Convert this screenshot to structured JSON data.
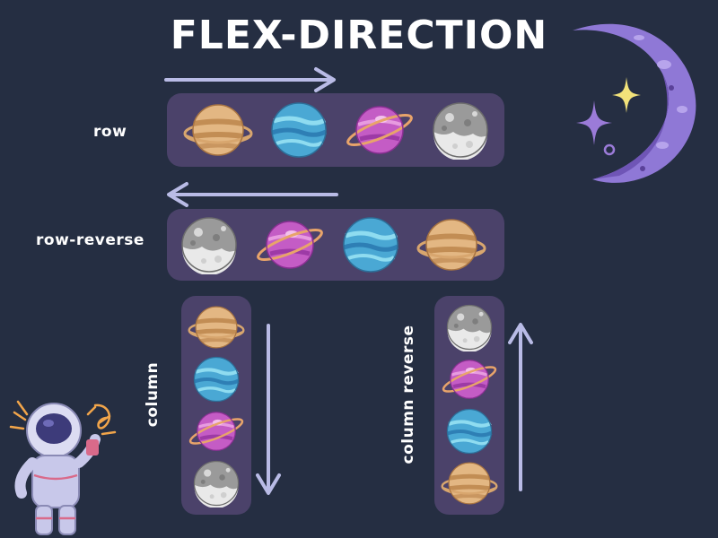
{
  "title": "FLEX-DIRECTION",
  "labels": {
    "row": "row",
    "row_reverse": "row-reverse",
    "column": "column",
    "column_reverse": "column reverse"
  },
  "planet_sequences": {
    "row": [
      "saturn-tan",
      "neptune-blue",
      "purple-ringed",
      "moon-gray"
    ],
    "row_reverse": [
      "moon-gray",
      "purple-ringed",
      "neptune-blue",
      "saturn-tan"
    ],
    "column": [
      "saturn-tan",
      "neptune-blue",
      "purple-ringed",
      "moon-gray"
    ],
    "column_reverse": [
      "moon-gray",
      "purple-ringed",
      "neptune-blue",
      "saturn-tan"
    ]
  },
  "arrow_directions": {
    "row": "right",
    "row_reverse": "left",
    "column": "down",
    "column_reverse": "up"
  },
  "colors": {
    "background": "#252e42",
    "container": "#4b426a",
    "arrow": "#b9bbe6",
    "text": "#ffffff",
    "moon": "#8f78d6",
    "sparkle": "#f2e27a"
  }
}
